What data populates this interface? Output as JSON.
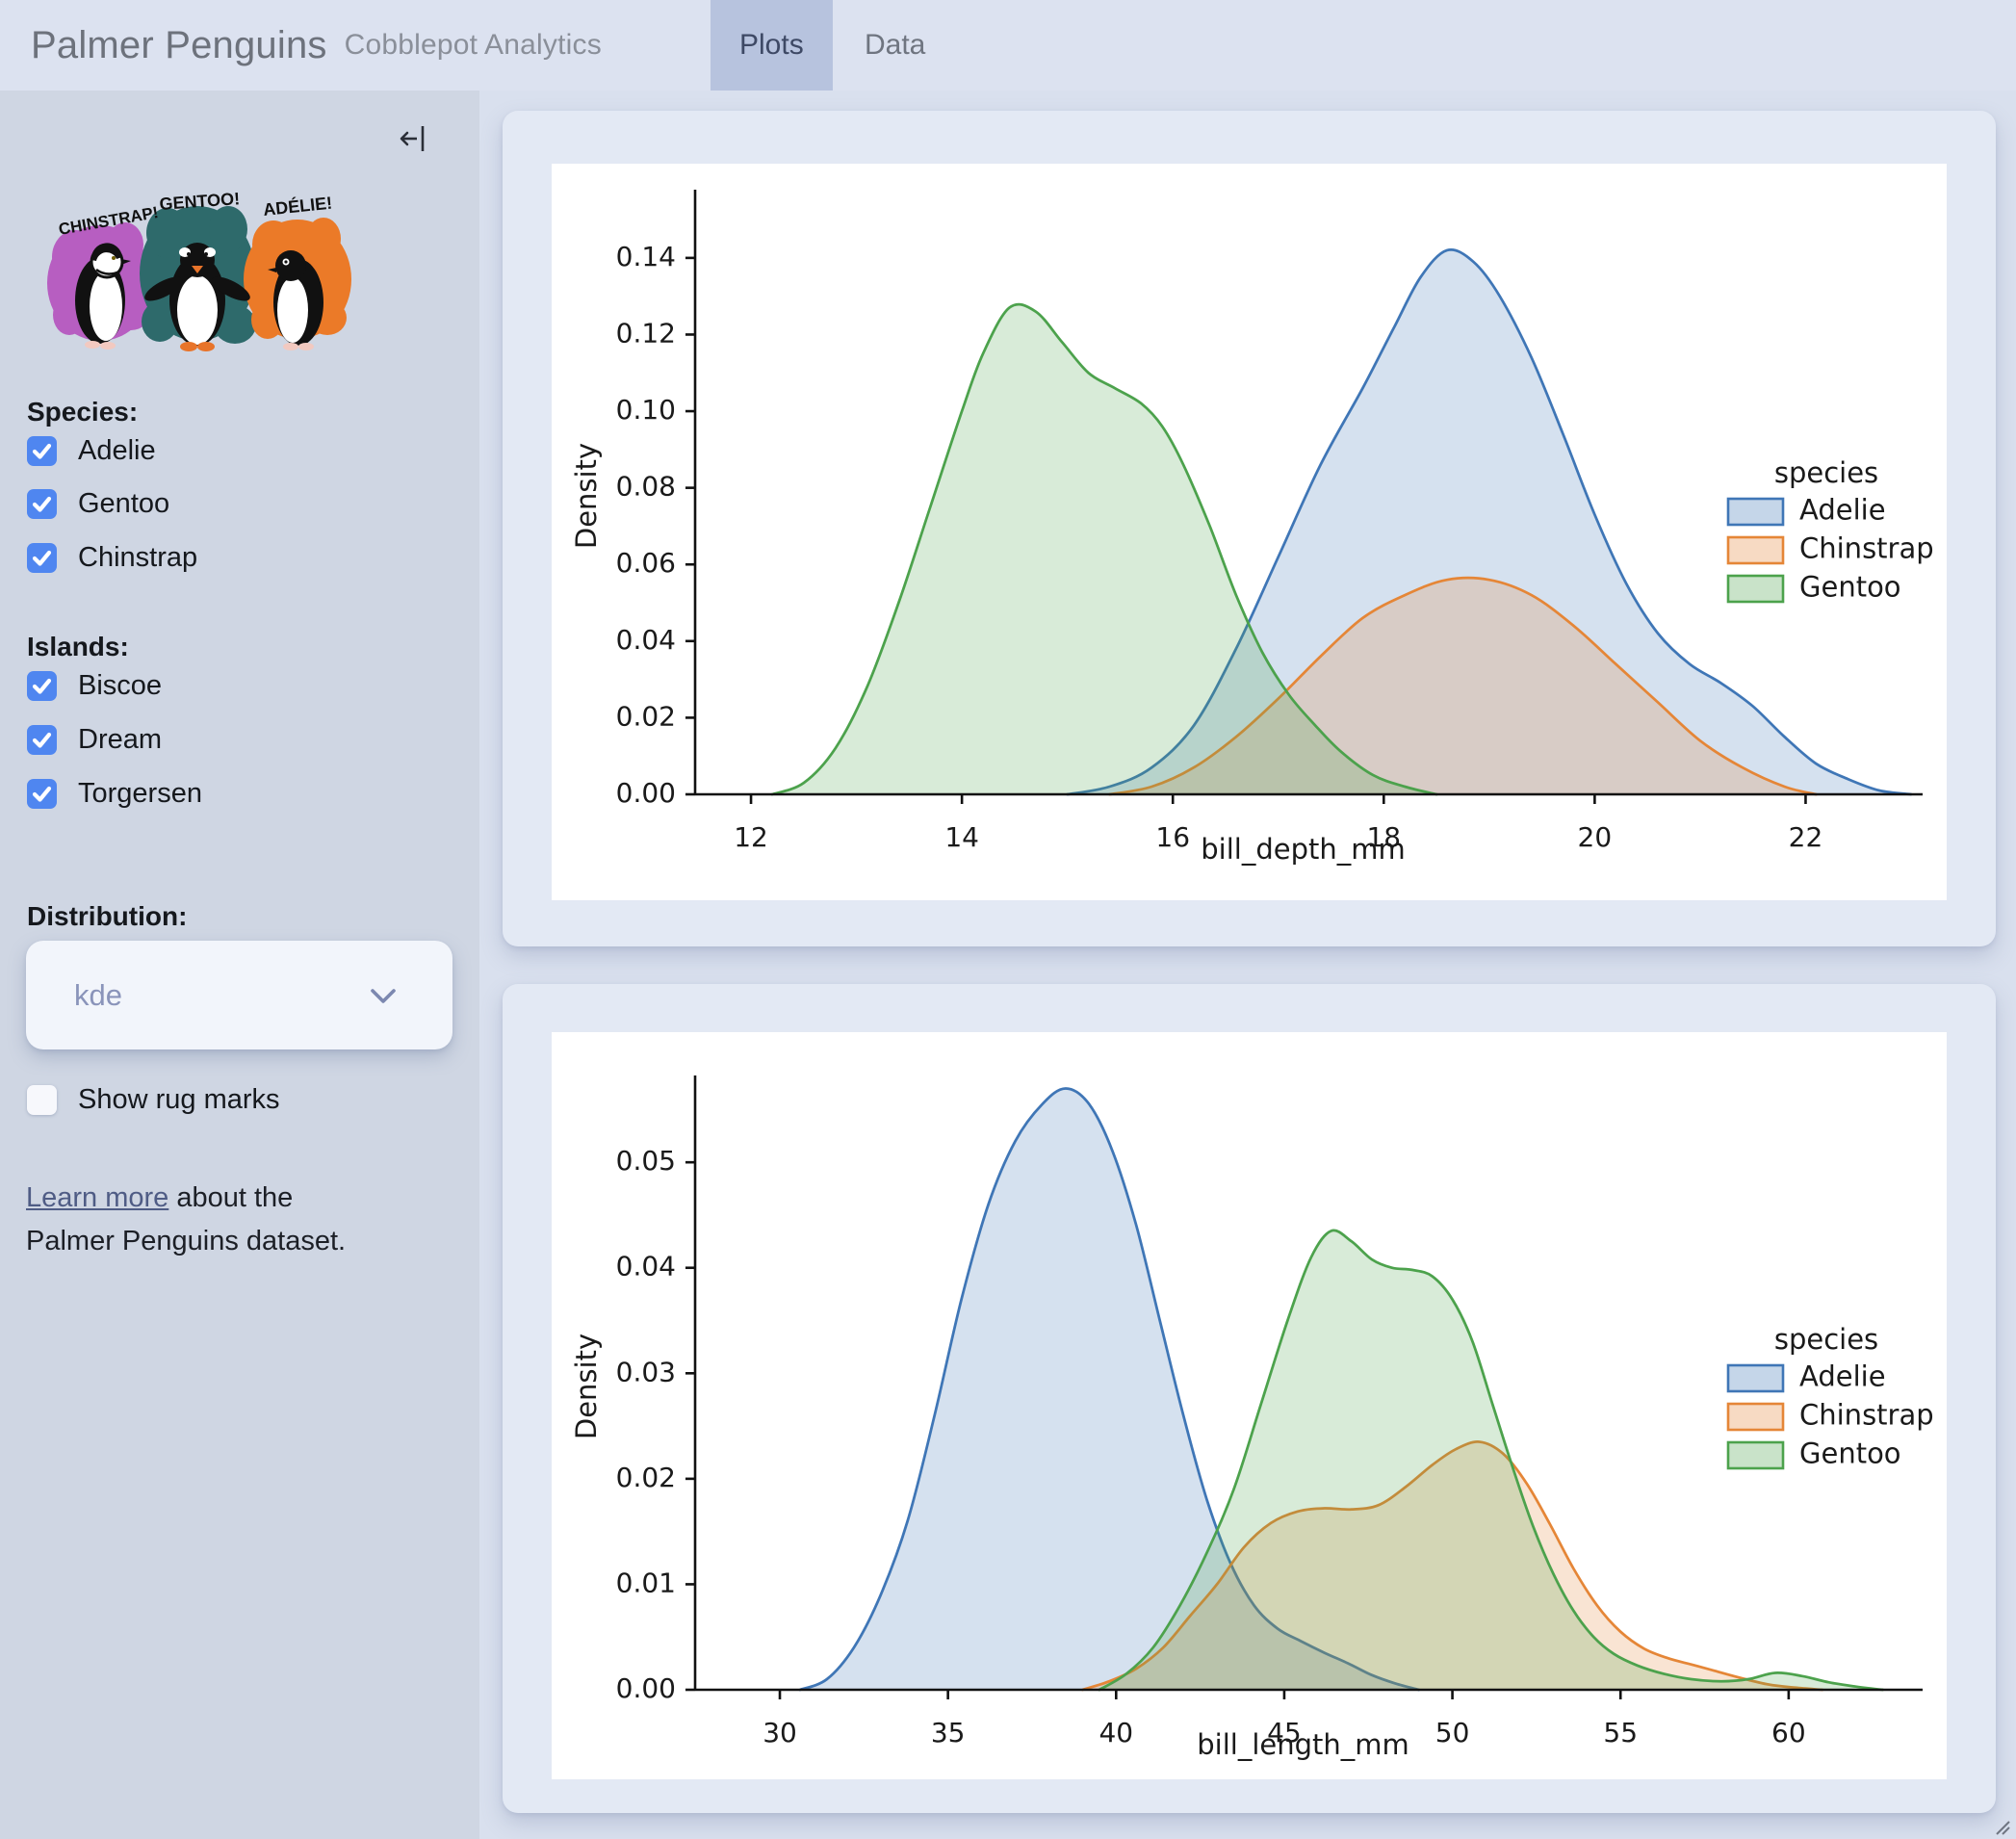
{
  "header": {
    "title": "Palmer Penguins",
    "subtitle": "Cobblepot Analytics",
    "tabs": [
      {
        "label": "Plots",
        "active": true
      },
      {
        "label": "Data",
        "active": false
      }
    ]
  },
  "sidebar": {
    "artwork": {
      "labels": [
        "CHINSTRAP!",
        "GENTOO!",
        "ADÉLIE!"
      ],
      "colors": {
        "chinstrap": "#b75ec1",
        "gentoo": "#2e6a6b",
        "adelie": "#eb7a28"
      }
    },
    "species": {
      "heading": "Species:",
      "options": [
        {
          "label": "Adelie",
          "checked": true
        },
        {
          "label": "Gentoo",
          "checked": true
        },
        {
          "label": "Chinstrap",
          "checked": true
        }
      ]
    },
    "islands": {
      "heading": "Islands:",
      "options": [
        {
          "label": "Biscoe",
          "checked": true
        },
        {
          "label": "Dream",
          "checked": true
        },
        {
          "label": "Torgersen",
          "checked": true
        }
      ]
    },
    "distribution": {
      "heading": "Distribution:",
      "value": "kde"
    },
    "rug": {
      "label": "Show rug marks",
      "checked": false
    },
    "footer": {
      "link_text": "Learn more",
      "text_after": " about the Palmer Penguins dataset."
    },
    "accent_color": "#4f86f0"
  },
  "chart_data": [
    {
      "type": "area",
      "kind": "kde",
      "title": "",
      "xlabel": "bill_depth_mm",
      "ylabel": "Density",
      "xlim": [
        11.47,
        23.0
      ],
      "ylim": [
        0,
        0.1558
      ],
      "grid": false,
      "xticks": [
        {
          "v": 12,
          "l": "12"
        },
        {
          "v": 14,
          "l": "14"
        },
        {
          "v": 16,
          "l": "16"
        },
        {
          "v": 18,
          "l": "18"
        },
        {
          "v": 20,
          "l": "20"
        },
        {
          "v": 22,
          "l": "22"
        }
      ],
      "yticks": [
        {
          "v": 0,
          "l": "0.00"
        },
        {
          "v": 0.02,
          "l": "0.02"
        },
        {
          "v": 0.04,
          "l": "0.04"
        },
        {
          "v": 0.06,
          "l": "0.06"
        },
        {
          "v": 0.08,
          "l": "0.08"
        },
        {
          "v": 0.1,
          "l": "0.10"
        },
        {
          "v": 0.12,
          "l": "0.12"
        },
        {
          "v": 0.14,
          "l": "0.14"
        }
      ],
      "legend": {
        "title": "species",
        "position": "center right",
        "entries": [
          {
            "label": "Adelie",
            "color": "#3f76b6"
          },
          {
            "label": "Chinstrap",
            "color": "#e58637"
          },
          {
            "label": "Gentoo",
            "color": "#4ca24c"
          }
        ]
      },
      "series": [
        {
          "name": "Adelie",
          "color": "#3f76b6",
          "points": [
            [
              15.0,
              0
            ],
            [
              15.4,
              0.002
            ],
            [
              15.8,
              0.007
            ],
            [
              16.2,
              0.018
            ],
            [
              16.6,
              0.038
            ],
            [
              17.0,
              0.062
            ],
            [
              17.4,
              0.086
            ],
            [
              17.8,
              0.106
            ],
            [
              18.1,
              0.122
            ],
            [
              18.35,
              0.135
            ],
            [
              18.6,
              0.142
            ],
            [
              18.85,
              0.139
            ],
            [
              19.1,
              0.13
            ],
            [
              19.4,
              0.114
            ],
            [
              19.7,
              0.094
            ],
            [
              20.0,
              0.073
            ],
            [
              20.3,
              0.055
            ],
            [
              20.6,
              0.042
            ],
            [
              20.9,
              0.034
            ],
            [
              21.2,
              0.029
            ],
            [
              21.5,
              0.023
            ],
            [
              21.8,
              0.015
            ],
            [
              22.1,
              0.008
            ],
            [
              22.4,
              0.004
            ],
            [
              22.7,
              0.001
            ],
            [
              23.0,
              0
            ]
          ]
        },
        {
          "name": "Chinstrap",
          "color": "#e58637",
          "points": [
            [
              15.4,
              0
            ],
            [
              15.8,
              0.002
            ],
            [
              16.2,
              0.007
            ],
            [
              16.6,
              0.015
            ],
            [
              17.0,
              0.025
            ],
            [
              17.4,
              0.036
            ],
            [
              17.8,
              0.046
            ],
            [
              18.2,
              0.052
            ],
            [
              18.6,
              0.056
            ],
            [
              19.0,
              0.056
            ],
            [
              19.4,
              0.052
            ],
            [
              19.8,
              0.044
            ],
            [
              20.2,
              0.034
            ],
            [
              20.6,
              0.024
            ],
            [
              21.0,
              0.014
            ],
            [
              21.4,
              0.007
            ],
            [
              21.8,
              0.002
            ],
            [
              22.1,
              0
            ]
          ]
        },
        {
          "name": "Gentoo",
          "color": "#4ca24c",
          "points": [
            [
              12.2,
              0
            ],
            [
              12.5,
              0.003
            ],
            [
              12.8,
              0.012
            ],
            [
              13.1,
              0.028
            ],
            [
              13.4,
              0.05
            ],
            [
              13.7,
              0.075
            ],
            [
              14.0,
              0.1
            ],
            [
              14.2,
              0.115
            ],
            [
              14.45,
              0.127
            ],
            [
              14.7,
              0.126
            ],
            [
              14.95,
              0.118
            ],
            [
              15.2,
              0.11
            ],
            [
              15.45,
              0.106
            ],
            [
              15.7,
              0.102
            ],
            [
              15.9,
              0.096
            ],
            [
              16.1,
              0.086
            ],
            [
              16.35,
              0.07
            ],
            [
              16.6,
              0.052
            ],
            [
              16.85,
              0.037
            ],
            [
              17.1,
              0.026
            ],
            [
              17.35,
              0.018
            ],
            [
              17.6,
              0.011
            ],
            [
              17.9,
              0.005
            ],
            [
              18.2,
              0.002
            ],
            [
              18.5,
              0
            ]
          ]
        }
      ]
    },
    {
      "type": "area",
      "kind": "kde",
      "title": "",
      "xlabel": "bill_length_mm",
      "ylabel": "Density",
      "xlim": [
        27.48,
        63.64
      ],
      "ylim": [
        0,
        0.0575
      ],
      "grid": false,
      "xticks": [
        {
          "v": 30,
          "l": "30"
        },
        {
          "v": 35,
          "l": "35"
        },
        {
          "v": 40,
          "l": "40"
        },
        {
          "v": 45,
          "l": "45"
        },
        {
          "v": 50,
          "l": "50"
        },
        {
          "v": 55,
          "l": "55"
        },
        {
          "v": 60,
          "l": "60"
        }
      ],
      "yticks": [
        {
          "v": 0,
          "l": "0.00"
        },
        {
          "v": 0.01,
          "l": "0.01"
        },
        {
          "v": 0.02,
          "l": "0.02"
        },
        {
          "v": 0.03,
          "l": "0.03"
        },
        {
          "v": 0.04,
          "l": "0.04"
        },
        {
          "v": 0.05,
          "l": "0.05"
        }
      ],
      "legend": {
        "title": "species",
        "position": "center right",
        "entries": [
          {
            "label": "Adelie",
            "color": "#3f76b6"
          },
          {
            "label": "Chinstrap",
            "color": "#e58637"
          },
          {
            "label": "Gentoo",
            "color": "#4ca24c"
          }
        ]
      },
      "series": [
        {
          "name": "Adelie",
          "color": "#3f76b6",
          "points": [
            [
              30.6,
              0
            ],
            [
              31.4,
              0.001
            ],
            [
              32.2,
              0.004
            ],
            [
              33.0,
              0.009
            ],
            [
              33.8,
              0.016
            ],
            [
              34.6,
              0.026
            ],
            [
              35.4,
              0.037
            ],
            [
              36.2,
              0.046
            ],
            [
              37.0,
              0.052
            ],
            [
              37.8,
              0.0555
            ],
            [
              38.5,
              0.057
            ],
            [
              39.2,
              0.0555
            ],
            [
              39.9,
              0.051
            ],
            [
              40.6,
              0.044
            ],
            [
              41.3,
              0.035
            ],
            [
              42.0,
              0.026
            ],
            [
              42.7,
              0.018
            ],
            [
              43.4,
              0.012
            ],
            [
              44.1,
              0.008
            ],
            [
              44.8,
              0.0058
            ],
            [
              45.5,
              0.0046
            ],
            [
              46.2,
              0.0035
            ],
            [
              46.9,
              0.0025
            ],
            [
              47.6,
              0.0014
            ],
            [
              48.3,
              0.0006
            ],
            [
              49.0,
              0
            ]
          ]
        },
        {
          "name": "Chinstrap",
          "color": "#e58637",
          "points": [
            [
              39.0,
              0
            ],
            [
              39.8,
              0.0008
            ],
            [
              40.6,
              0.002
            ],
            [
              41.4,
              0.004
            ],
            [
              42.2,
              0.007
            ],
            [
              43.0,
              0.01
            ],
            [
              43.8,
              0.0135
            ],
            [
              44.6,
              0.0158
            ],
            [
              45.4,
              0.0169
            ],
            [
              46.2,
              0.0172
            ],
            [
              47.0,
              0.0171
            ],
            [
              47.8,
              0.0175
            ],
            [
              48.6,
              0.0192
            ],
            [
              49.4,
              0.0213
            ],
            [
              50.1,
              0.0228
            ],
            [
              50.8,
              0.0235
            ],
            [
              51.5,
              0.0224
            ],
            [
              52.2,
              0.0196
            ],
            [
              52.9,
              0.0157
            ],
            [
              53.6,
              0.0115
            ],
            [
              54.3,
              0.008
            ],
            [
              55.0,
              0.0055
            ],
            [
              55.7,
              0.0039
            ],
            [
              56.4,
              0.003
            ],
            [
              57.1,
              0.0024
            ],
            [
              57.8,
              0.0018
            ],
            [
              58.6,
              0.0011
            ],
            [
              59.4,
              0.0005
            ],
            [
              60.2,
              0.0002
            ],
            [
              61.0,
              0
            ]
          ]
        },
        {
          "name": "Gentoo",
          "color": "#4ca24c",
          "points": [
            [
              39.5,
              0
            ],
            [
              40.3,
              0.0015
            ],
            [
              41.1,
              0.004
            ],
            [
              41.9,
              0.008
            ],
            [
              42.7,
              0.013
            ],
            [
              43.5,
              0.019
            ],
            [
              44.3,
              0.027
            ],
            [
              45.1,
              0.035
            ],
            [
              45.8,
              0.041
            ],
            [
              46.4,
              0.0435
            ],
            [
              47.0,
              0.0425
            ],
            [
              47.6,
              0.0408
            ],
            [
              48.2,
              0.04
            ],
            [
              48.8,
              0.0398
            ],
            [
              49.4,
              0.0392
            ],
            [
              50.0,
              0.037
            ],
            [
              50.6,
              0.033
            ],
            [
              51.2,
              0.027
            ],
            [
              51.8,
              0.021
            ],
            [
              52.4,
              0.0155
            ],
            [
              53.0,
              0.011
            ],
            [
              53.6,
              0.0075
            ],
            [
              54.2,
              0.005
            ],
            [
              54.8,
              0.0034
            ],
            [
              55.5,
              0.0023
            ],
            [
              56.3,
              0.0015
            ],
            [
              57.1,
              0.001
            ],
            [
              58.0,
              0.0008
            ],
            [
              58.8,
              0.001
            ],
            [
              59.6,
              0.0016
            ],
            [
              60.4,
              0.0013
            ],
            [
              61.2,
              0.0007
            ],
            [
              62.0,
              0.0003
            ],
            [
              62.8,
              0
            ]
          ]
        }
      ]
    }
  ]
}
